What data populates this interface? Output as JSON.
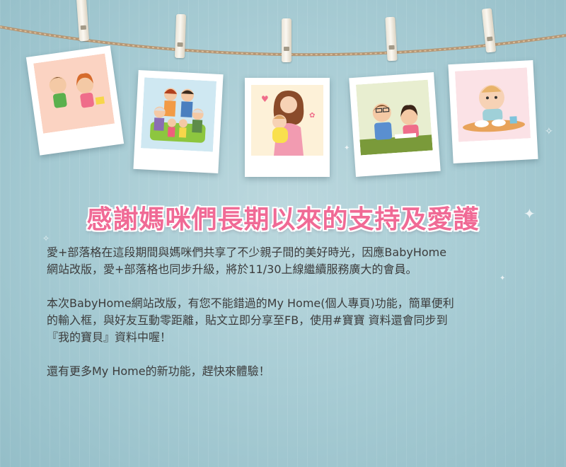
{
  "title": "感謝媽咪們長期以來的支持及愛護",
  "paragraphs": [
    "愛+部落格在這段期間與媽咪們共享了不少親子間的美好時光，因應BabyHome\n網站改版，愛+部落格也同步升級，將於11/30上線繼續服務廣大的會員。",
    "本次BabyHome網站改版，有您不能錯過的My Home(個人專頁)功能，簡單便利\n的輸入框，與好友互動零距離，貼文立即分享至FB，使用#寶寶 資料還會同步到\n『我的寶貝』資料中喔！",
    "還有更多My Home的新功能，趕快來體驗！"
  ],
  "photos": [
    {
      "name": "kids-playing-photo",
      "rotation": -8
    },
    {
      "name": "family-portrait-photo",
      "rotation": 4
    },
    {
      "name": "mother-and-baby-photo",
      "rotation": 0
    },
    {
      "name": "teacher-and-child-photo",
      "rotation": -4
    },
    {
      "name": "baby-eating-photo",
      "rotation": -3
    }
  ],
  "colors": {
    "title": "#f06a95",
    "text": "#3c3c3c",
    "background": "#a9cdd5"
  }
}
